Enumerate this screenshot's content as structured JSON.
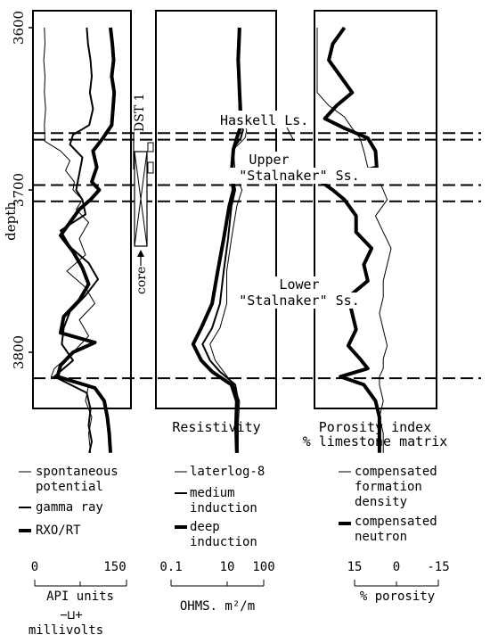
{
  "chart_data": {
    "type": "line",
    "y_axis": {
      "label": "depth",
      "range": [
        3600,
        3862
      ],
      "ticks": [
        "3600",
        "3700",
        "3800"
      ]
    },
    "tracks": [
      {
        "id": "track1",
        "title": "",
        "series": [
          {
            "name": "spontaneous potential",
            "style": "thin",
            "points": [
              [
                3600,
                14
              ],
              [
                3610,
                15
              ],
              [
                3620,
                13
              ],
              [
                3630,
                15
              ],
              [
                3640,
                14
              ],
              [
                3650,
                16
              ],
              [
                3660,
                14
              ],
              [
                3670,
                15
              ],
              [
                3676,
                40
              ],
              [
                3682,
                55
              ],
              [
                3688,
                48
              ],
              [
                3695,
                62
              ],
              [
                3700,
                60
              ],
              [
                3706,
                75
              ],
              [
                3712,
                65
              ],
              [
                3720,
                85
              ],
              [
                3730,
                70
              ],
              [
                3740,
                80
              ],
              [
                3750,
                50
              ],
              [
                3760,
                80
              ],
              [
                3770,
                95
              ],
              [
                3780,
                70
              ],
              [
                3790,
                85
              ],
              [
                3800,
                60
              ],
              [
                3810,
                30
              ],
              [
                3815,
                25
              ],
              [
                3820,
                85
              ],
              [
                3830,
                80
              ],
              [
                3840,
                90
              ],
              [
                3850,
                85
              ],
              [
                3862,
                88
              ]
            ]
          },
          {
            "name": "gamma ray",
            "style": "medium",
            "points": [
              [
                3600,
                82
              ],
              [
                3610,
                84
              ],
              [
                3620,
                88
              ],
              [
                3630,
                90
              ],
              [
                3640,
                87
              ],
              [
                3650,
                92
              ],
              [
                3660,
                86
              ],
              [
                3666,
                60
              ],
              [
                3672,
                55
              ],
              [
                3680,
                75
              ],
              [
                3690,
                70
              ],
              [
                3700,
                65
              ],
              [
                3706,
                75
              ],
              [
                3715,
                80
              ],
              [
                3725,
                40
              ],
              [
                3735,
                55
              ],
              [
                3745,
                85
              ],
              [
                3755,
                100
              ],
              [
                3765,
                80
              ],
              [
                3775,
                55
              ],
              [
                3785,
                45
              ],
              [
                3795,
                42
              ],
              [
                3805,
                60
              ],
              [
                3815,
                30
              ],
              [
                3825,
                82
              ],
              [
                3835,
                88
              ],
              [
                3845,
                85
              ],
              [
                3855,
                90
              ],
              [
                3862,
                86
              ]
            ]
          },
          {
            "name": "RXO/RT",
            "style": "thick",
            "points": [
              [
                3600,
                120
              ],
              [
                3610,
                123
              ],
              [
                3620,
                125
              ],
              [
                3630,
                122
              ],
              [
                3640,
                126
              ],
              [
                3650,
                124
              ],
              [
                3660,
                122
              ],
              [
                3668,
                108
              ],
              [
                3676,
                92
              ],
              [
                3686,
                98
              ],
              [
                3695,
                90
              ],
              [
                3700,
                102
              ],
              [
                3706,
                88
              ],
              [
                3712,
                70
              ],
              [
                3720,
                55
              ],
              [
                3728,
                40
              ],
              [
                3738,
                60
              ],
              [
                3748,
                75
              ],
              [
                3758,
                85
              ],
              [
                3768,
                70
              ],
              [
                3778,
                45
              ],
              [
                3788,
                40
              ],
              [
                3794,
                95
              ],
              [
                3800,
                60
              ],
              [
                3808,
                40
              ],
              [
                3815,
                35
              ],
              [
                3822,
                95
              ],
              [
                3830,
                110
              ],
              [
                3840,
                115
              ],
              [
                3850,
                118
              ],
              [
                3862,
                120
              ]
            ]
          }
        ],
        "scale": {
          "tick_labels": [
            "0",
            "150"
          ],
          "unit": "API units",
          "range": [
            0,
            150
          ]
        },
        "secondary_scale": {
          "label": "millivolts",
          "symbol": "−⊔+"
        }
      },
      {
        "id": "track2",
        "title": "Resistivity",
        "series": [
          {
            "name": "laterlog-8",
            "style": "thin",
            "points": [
              [
                3600,
                12
              ],
              [
                3620,
                11
              ],
              [
                3640,
                13
              ],
              [
                3655,
                14
              ],
              [
                3663,
                20
              ],
              [
                3668,
                18
              ],
              [
                3675,
                9
              ],
              [
                3690,
                10
              ],
              [
                3700,
                15
              ],
              [
                3710,
                11
              ],
              [
                3730,
                8
              ],
              [
                3750,
                6
              ],
              [
                3770,
                6
              ],
              [
                3785,
                4
              ],
              [
                3795,
                2.2
              ],
              [
                3805,
                3
              ],
              [
                3812,
                5
              ],
              [
                3820,
                9
              ],
              [
                3830,
                13
              ],
              [
                3845,
                12
              ],
              [
                3862,
                12
              ]
            ]
          },
          {
            "name": "medium induction",
            "style": "medium",
            "points": [
              [
                3600,
                12.5
              ],
              [
                3620,
                11.5
              ],
              [
                3640,
                12.5
              ],
              [
                3655,
                13
              ],
              [
                3663,
                16
              ],
              [
                3668,
                14
              ],
              [
                3675,
                8.5
              ],
              [
                3690,
                8.5
              ],
              [
                3700,
                10
              ],
              [
                3710,
                8
              ],
              [
                3730,
                6.5
              ],
              [
                3750,
                5
              ],
              [
                3770,
                4
              ],
              [
                3785,
                2.5
              ],
              [
                3795,
                1.4
              ],
              [
                3805,
                2.2
              ],
              [
                3812,
                4
              ],
              [
                3820,
                10
              ],
              [
                3830,
                12
              ],
              [
                3845,
                11
              ],
              [
                3862,
                11.5
              ]
            ]
          },
          {
            "name": "deep induction",
            "style": "thick",
            "points": [
              [
                3600,
                13
              ],
              [
                3620,
                12
              ],
              [
                3640,
                13
              ],
              [
                3655,
                14
              ],
              [
                3663,
                13
              ],
              [
                3668,
                11
              ],
              [
                3675,
                9
              ],
              [
                3690,
                8
              ],
              [
                3700,
                9
              ],
              [
                3710,
                7
              ],
              [
                3730,
                5
              ],
              [
                3750,
                3.5
              ],
              [
                3770,
                2.5
              ],
              [
                3785,
                1.3
              ],
              [
                3795,
                0.8
              ],
              [
                3805,
                1.3
              ],
              [
                3812,
                2.5
              ],
              [
                3820,
                8
              ],
              [
                3830,
                11
              ],
              [
                3845,
                10.5
              ],
              [
                3862,
                11
              ]
            ]
          }
        ],
        "scale": {
          "tick_labels": [
            "0.1",
            "10",
            "100"
          ],
          "unit": "OHMS. m²/m",
          "type": "log",
          "range": [
            0.1,
            100
          ]
        }
      },
      {
        "id": "track3",
        "title": "Porosity index % limestone matrix",
        "series": [
          {
            "name": "compensated formation density",
            "style": "thin",
            "points": [
              [
                3600,
                20
              ],
              [
                3610,
                21
              ],
              [
                3620,
                22
              ],
              [
                3630,
                19
              ],
              [
                3640,
                18
              ],
              [
                3648,
                12
              ],
              [
                3655,
                8
              ],
              [
                3662,
                6
              ],
              [
                3668,
                4
              ],
              [
                3676,
                3
              ],
              [
                3686,
                2
              ],
              [
                3695,
                -1
              ],
              [
                3700,
                -2
              ],
              [
                3706,
                -3
              ],
              [
                3716,
                0
              ],
              [
                3726,
                -2
              ],
              [
                3736,
                -4
              ],
              [
                3746,
                -3
              ],
              [
                3756,
                -2
              ],
              [
                3766,
                -2
              ],
              [
                3776,
                -1
              ],
              [
                3786,
                -2
              ],
              [
                3796,
                -3
              ],
              [
                3804,
                -2
              ],
              [
                3810,
                -2
              ],
              [
                3815,
                -1
              ],
              [
                3820,
                -1
              ],
              [
                3830,
                -2
              ],
              [
                3840,
                -1
              ],
              [
                3850,
                -2
              ],
              [
                3862,
                -2
              ]
            ]
          },
          {
            "name": "compensated neutron",
            "style": "thick",
            "points": [
              [
                3600,
                8
              ],
              [
                3610,
                11
              ],
              [
                3620,
                12
              ],
              [
                3630,
                9
              ],
              [
                3640,
                6
              ],
              [
                3648,
                10
              ],
              [
                3656,
                13
              ],
              [
                3662,
                8
              ],
              [
                3668,
                2
              ],
              [
                3676,
                0
              ],
              [
                3686,
                -0.3
              ],
              [
                3695,
                14
              ],
              [
                3700,
                11
              ],
              [
                3706,
                8
              ],
              [
                3716,
                5
              ],
              [
                3726,
                5
              ],
              [
                3736,
                1
              ],
              [
                3746,
                3
              ],
              [
                3756,
                2
              ],
              [
                3766,
                7
              ],
              [
                3776,
                6
              ],
              [
                3786,
                5
              ],
              [
                3796,
                7
              ],
              [
                3804,
                4
              ],
              [
                3810,
                2
              ],
              [
                3815,
                9
              ],
              [
                3820,
                3
              ],
              [
                3830,
                0
              ],
              [
                3840,
                -1
              ],
              [
                3850,
                -1
              ],
              [
                3862,
                -1
              ]
            ]
          }
        ],
        "scale": {
          "tick_labels": [
            "15",
            "0",
            "-15"
          ],
          "unit": "% porosity",
          "range": [
            15,
            -15
          ]
        }
      }
    ],
    "formation_lines": [
      3665,
      3669,
      3697,
      3707,
      3816
    ],
    "annotations": {
      "haskell": "Haskell Ls.",
      "upper_1": "Upper",
      "upper_2": "\"Stalnaker\" Ss.",
      "lower_1": "Lower",
      "lower_2": "\"Stalnaker\" Ss.",
      "dst": "DST 1",
      "core": "core"
    },
    "legend": {
      "track1": [
        "spontaneous potential",
        "gamma ray",
        "RXO/RT"
      ],
      "track2": [
        "laterlog-8",
        "medium induction",
        "deep induction"
      ],
      "track3": [
        "compensated formation density",
        "compensated neutron"
      ]
    }
  },
  "labels": {
    "track2_title": "Resistivity",
    "track3_title_1": "Porosity index",
    "track3_title_2": "% limestone matrix",
    "y_label": "depth",
    "leg_sp_1": "spontaneous",
    "leg_sp_2": "potential",
    "leg_gr": "gamma ray",
    "leg_rxo": "RXO/RT",
    "leg_ll_1": "laterlog-8",
    "leg_mi_1": "medium",
    "leg_mi_2": "induction",
    "leg_di_1": "deep",
    "leg_di_2": "induction",
    "leg_cfd_1": "compensated",
    "leg_cfd_2": "formation",
    "leg_cfd_3": "density",
    "leg_cn_1": "compensated",
    "leg_cn_2": "neutron",
    "s1_t0": "0",
    "s1_t1": "150",
    "s1_unit": "API units",
    "s1_mv_symbol": "−⊔+",
    "s1_mv": "millivolts",
    "s2_t0": "0.1",
    "s2_t1": "10",
    "s2_t2": "100",
    "s2_unit": "OHMS. m²/m",
    "s3_t0": "15",
    "s3_t1": "0",
    "s3_t2": "-15",
    "s3_unit": "% porosity"
  }
}
